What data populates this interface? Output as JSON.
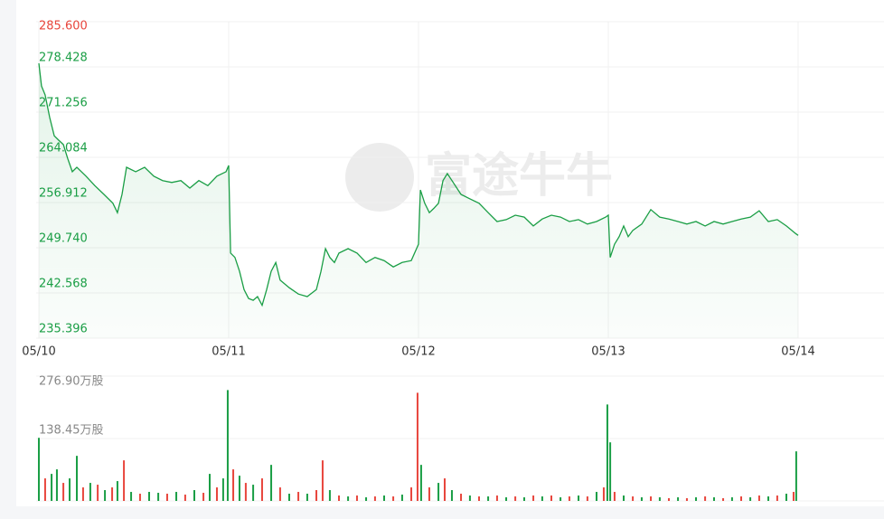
{
  "watermark": "富途牛牛",
  "chart_data": [
    {
      "type": "line",
      "x": [
        0,
        0.014,
        0.033,
        0.057,
        0.081,
        0.105,
        0.129,
        0.152,
        0.176,
        0.2,
        0.248,
        0.295,
        0.343,
        0.39,
        0.414,
        0.438,
        0.462,
        0.51,
        0.557,
        0.605,
        0.652,
        0.7,
        0.748,
        0.795,
        0.843,
        0.89,
        0.938,
        0.986,
        1,
        1.01,
        1.033,
        1.057,
        1.081,
        1.105,
        1.129,
        1.152,
        1.176,
        1.2,
        1.224,
        1.248,
        1.271,
        1.319,
        1.367,
        1.414,
        1.462,
        1.486,
        1.51,
        1.533,
        1.557,
        1.581,
        1.629,
        1.676,
        1.724,
        1.771,
        1.819,
        1.867,
        1.914,
        1.962,
        2,
        2.01,
        2.033,
        2.057,
        2.081,
        2.105,
        2.129,
        2.152,
        2.176,
        2.224,
        2.271,
        2.319,
        2.367,
        2.414,
        2.462,
        2.51,
        2.557,
        2.605,
        2.652,
        2.7,
        2.748,
        2.795,
        2.843,
        2.89,
        2.938,
        2.986,
        3,
        3.01,
        3.033,
        3.057,
        3.081,
        3.105,
        3.129,
        3.176,
        3.224,
        3.271,
        3.319,
        3.367,
        3.414,
        3.462,
        3.51,
        3.557,
        3.605,
        3.652,
        3.7,
        3.748,
        3.795,
        3.843,
        3.89,
        3.938,
        3.986,
        4
      ],
      "values": [
        279.0,
        275.4,
        274.0,
        270.4,
        267.5,
        266.8,
        266.1,
        263.9,
        261.8,
        262.5,
        261.1,
        259.6,
        258.2,
        256.8,
        255.3,
        258.2,
        262.5,
        261.8,
        262.5,
        261.1,
        260.4,
        260.1,
        260.4,
        259.2,
        260.4,
        259.6,
        261.1,
        261.8,
        262.8,
        248.9,
        248.2,
        246.0,
        243.1,
        241.7,
        241.4,
        242.0,
        240.6,
        243.1,
        246.0,
        247.4,
        244.6,
        243.4,
        242.4,
        242.0,
        243.1,
        246.0,
        249.6,
        248.2,
        247.4,
        248.9,
        249.6,
        248.9,
        247.4,
        248.2,
        247.7,
        246.7,
        247.4,
        247.7,
        250.3,
        258.9,
        256.8,
        255.3,
        256.0,
        256.8,
        260.4,
        261.5,
        260.4,
        258.2,
        257.5,
        256.8,
        255.3,
        253.9,
        254.2,
        254.9,
        254.6,
        253.2,
        254.3,
        254.9,
        254.6,
        253.9,
        254.2,
        253.5,
        253.9,
        254.6,
        254.9,
        248.2,
        250.3,
        251.5,
        253.2,
        251.5,
        252.5,
        253.5,
        255.8,
        254.6,
        254.3,
        253.9,
        253.5,
        253.9,
        253.2,
        253.9,
        253.5,
        253.9,
        254.3,
        254.6,
        255.6,
        253.9,
        254.2,
        253.2,
        252.0,
        251.7
      ],
      "color": "#1a9e45",
      "xlim": [
        0,
        4
      ],
      "xticks": [
        {
          "value": 0,
          "label": "05/10"
        },
        {
          "value": 1,
          "label": "05/11"
        },
        {
          "value": 2,
          "label": "05/12"
        },
        {
          "value": 3,
          "label": "05/13"
        },
        {
          "value": 4,
          "label": "05/14"
        }
      ],
      "ylim": [
        235.396,
        285.6
      ],
      "yticks": [
        {
          "value": 235.396,
          "label": "235.396"
        },
        {
          "value": 242.568,
          "label": "242.568"
        },
        {
          "value": 249.74,
          "label": "249.740"
        },
        {
          "value": 256.912,
          "label": "256.912"
        },
        {
          "value": 264.084,
          "label": "264.084"
        },
        {
          "value": 271.256,
          "label": "271.256"
        },
        {
          "value": 278.428,
          "label": "278.428"
        },
        {
          "value": 285.6,
          "label": "285.600"
        }
      ],
      "ytick_colors": [
        "#1a9e45",
        "#1a9e45",
        "#1a9e45",
        "#1a9e45",
        "#1a9e45",
        "#1a9e45",
        "#1a9e45",
        "#e8453c"
      ],
      "grid": true
    },
    {
      "type": "bar",
      "x": [
        0,
        0.033,
        0.067,
        0.095,
        0.129,
        0.162,
        0.2,
        0.233,
        0.271,
        0.31,
        0.348,
        0.386,
        0.414,
        0.448,
        0.486,
        0.533,
        0.581,
        0.629,
        0.676,
        0.724,
        0.771,
        0.819,
        0.867,
        0.9,
        0.938,
        0.971,
        0.995,
        1.024,
        1.057,
        1.09,
        1.129,
        1.176,
        1.224,
        1.271,
        1.319,
        1.367,
        1.414,
        1.462,
        1.495,
        1.533,
        1.581,
        1.629,
        1.676,
        1.724,
        1.771,
        1.819,
        1.867,
        1.914,
        1.962,
        1.995,
        2.014,
        2.057,
        2.105,
        2.138,
        2.176,
        2.224,
        2.271,
        2.319,
        2.367,
        2.414,
        2.462,
        2.51,
        2.557,
        2.605,
        2.652,
        2.7,
        2.748,
        2.795,
        2.843,
        2.89,
        2.938,
        2.976,
        2.995,
        3.01,
        3.033,
        3.081,
        3.129,
        3.176,
        3.224,
        3.271,
        3.319,
        3.367,
        3.414,
        3.462,
        3.51,
        3.557,
        3.605,
        3.652,
        3.7,
        3.748,
        3.795,
        3.843,
        3.89,
        3.938,
        3.976,
        3.99
      ],
      "values": [
        140,
        50,
        60,
        70,
        40,
        50,
        100,
        30,
        40,
        36,
        24,
        30,
        44,
        90,
        20,
        16,
        20,
        18,
        16,
        20,
        14,
        24,
        18,
        60,
        30,
        50,
        246,
        70,
        56,
        40,
        36,
        50,
        80,
        30,
        16,
        20,
        16,
        24,
        90,
        24,
        12,
        10,
        12,
        8,
        10,
        12,
        10,
        14,
        30,
        240,
        80,
        30,
        40,
        50,
        24,
        16,
        12,
        10,
        10,
        12,
        8,
        10,
        8,
        12,
        10,
        12,
        8,
        10,
        12,
        10,
        20,
        30,
        214,
        130,
        20,
        12,
        10,
        8,
        10,
        8,
        6,
        8,
        6,
        8,
        10,
        8,
        6,
        8,
        10,
        8,
        12,
        10,
        12,
        16,
        20,
        110
      ],
      "colors": [
        "#1a9e45",
        "#e8453c",
        "#1a9e45",
        "#1a9e45",
        "#e8453c",
        "#1a9e45",
        "#1a9e45",
        "#e8453c",
        "#1a9e45",
        "#e8453c",
        "#1a9e45",
        "#e8453c",
        "#1a9e45",
        "#e8453c",
        "#1a9e45",
        "#e8453c",
        "#1a9e45",
        "#1a9e45",
        "#e8453c",
        "#1a9e45",
        "#e8453c",
        "#1a9e45",
        "#e8453c",
        "#1a9e45",
        "#e8453c",
        "#1a9e45",
        "#1a9e45",
        "#e8453c",
        "#1a9e45",
        "#e8453c",
        "#1a9e45",
        "#e8453c",
        "#1a9e45",
        "#e8453c",
        "#1a9e45",
        "#e8453c",
        "#1a9e45",
        "#e8453c",
        "#e8453c",
        "#1a9e45",
        "#e8453c",
        "#1a9e45",
        "#e8453c",
        "#1a9e45",
        "#e8453c",
        "#1a9e45",
        "#e8453c",
        "#1a9e45",
        "#e8453c",
        "#e8453c",
        "#1a9e45",
        "#e8453c",
        "#1a9e45",
        "#e8453c",
        "#1a9e45",
        "#e8453c",
        "#1a9e45",
        "#e8453c",
        "#1a9e45",
        "#e8453c",
        "#1a9e45",
        "#e8453c",
        "#1a9e45",
        "#e8453c",
        "#1a9e45",
        "#e8453c",
        "#1a9e45",
        "#e8453c",
        "#1a9e45",
        "#e8453c",
        "#1a9e45",
        "#e8453c",
        "#1a9e45",
        "#1a9e45",
        "#e8453c",
        "#1a9e45",
        "#e8453c",
        "#1a9e45",
        "#e8453c",
        "#1a9e45",
        "#e8453c",
        "#1a9e45",
        "#e8453c",
        "#1a9e45",
        "#e8453c",
        "#1a9e45",
        "#e8453c",
        "#1a9e45",
        "#e8453c",
        "#1a9e45",
        "#e8453c",
        "#1a9e45",
        "#e8453c",
        "#1a9e45",
        "#e8453c",
        "#1a9e45"
      ],
      "xlim": [
        0,
        4
      ],
      "ylim": [
        0,
        276.9
      ],
      "yticks": [
        {
          "value": 138.45,
          "label": "138.45万股"
        },
        {
          "value": 276.9,
          "label": "276.90万股"
        }
      ],
      "grid": true
    }
  ]
}
